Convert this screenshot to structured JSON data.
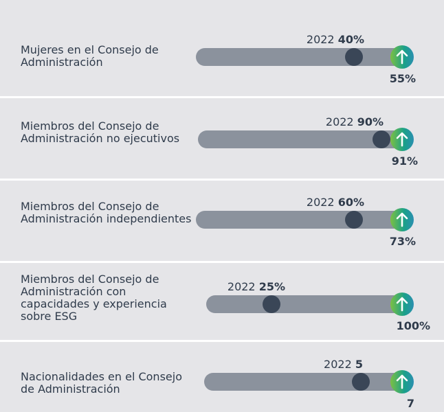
{
  "rows": [
    {
      "label": "Mujeres en el Consejo de Administración",
      "year": "2022",
      "previous": "40%",
      "current": "55%"
    },
    {
      "label": "Miembros del Consejo de Administración no ejecutivos",
      "year": "2022",
      "previous": "90%",
      "current": "91%"
    },
    {
      "label": "Miembros del Consejo de Administración independientes",
      "year": "2022",
      "previous": "60%",
      "current": "73%"
    },
    {
      "label": "Miembros del Consejo de Administración con capacidades y experiencia sobre ESG",
      "year": "2022",
      "previous": "25%",
      "current": "100%"
    },
    {
      "label": "Nacionalidades en el Consejo de Administración",
      "year": "2022",
      "previous": "5",
      "current": "7"
    }
  ]
}
